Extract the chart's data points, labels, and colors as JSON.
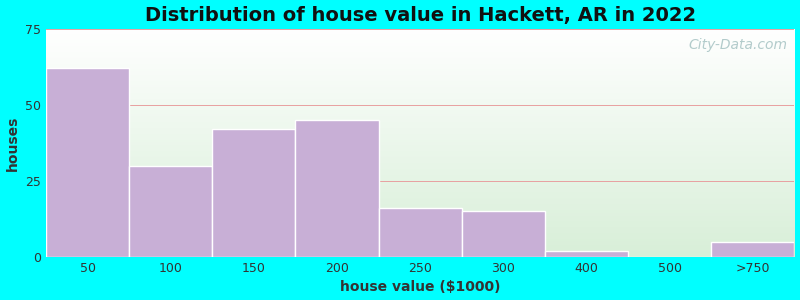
{
  "title": "Distribution of house value in Hackett, AR in 2022",
  "xlabel": "house value ($1000)",
  "ylabel": "houses",
  "bar_labels": [
    "50",
    "100",
    "150",
    "200",
    "250",
    "300",
    "400",
    "500",
    ">750"
  ],
  "bar_values": [
    62,
    30,
    42,
    45,
    16,
    15,
    2,
    0,
    5
  ],
  "bar_color": "#c8afd6",
  "bar_edgecolor": "#ffffff",
  "bar_linewidth": 1.0,
  "ylim": [
    0,
    75
  ],
  "yticks": [
    0,
    25,
    50,
    75
  ],
  "background_outer": "#00ffff",
  "gradient_colors": [
    "#ffffff",
    "#d8efd8"
  ],
  "grid_color": "#e8a0a0",
  "grid_linewidth": 0.7,
  "title_fontsize": 14,
  "axis_label_fontsize": 10,
  "tick_fontsize": 9,
  "watermark_text": "City-Data.com",
  "watermark_color": "#a0bfbf",
  "watermark_alpha": 0.8,
  "watermark_fontsize": 10
}
